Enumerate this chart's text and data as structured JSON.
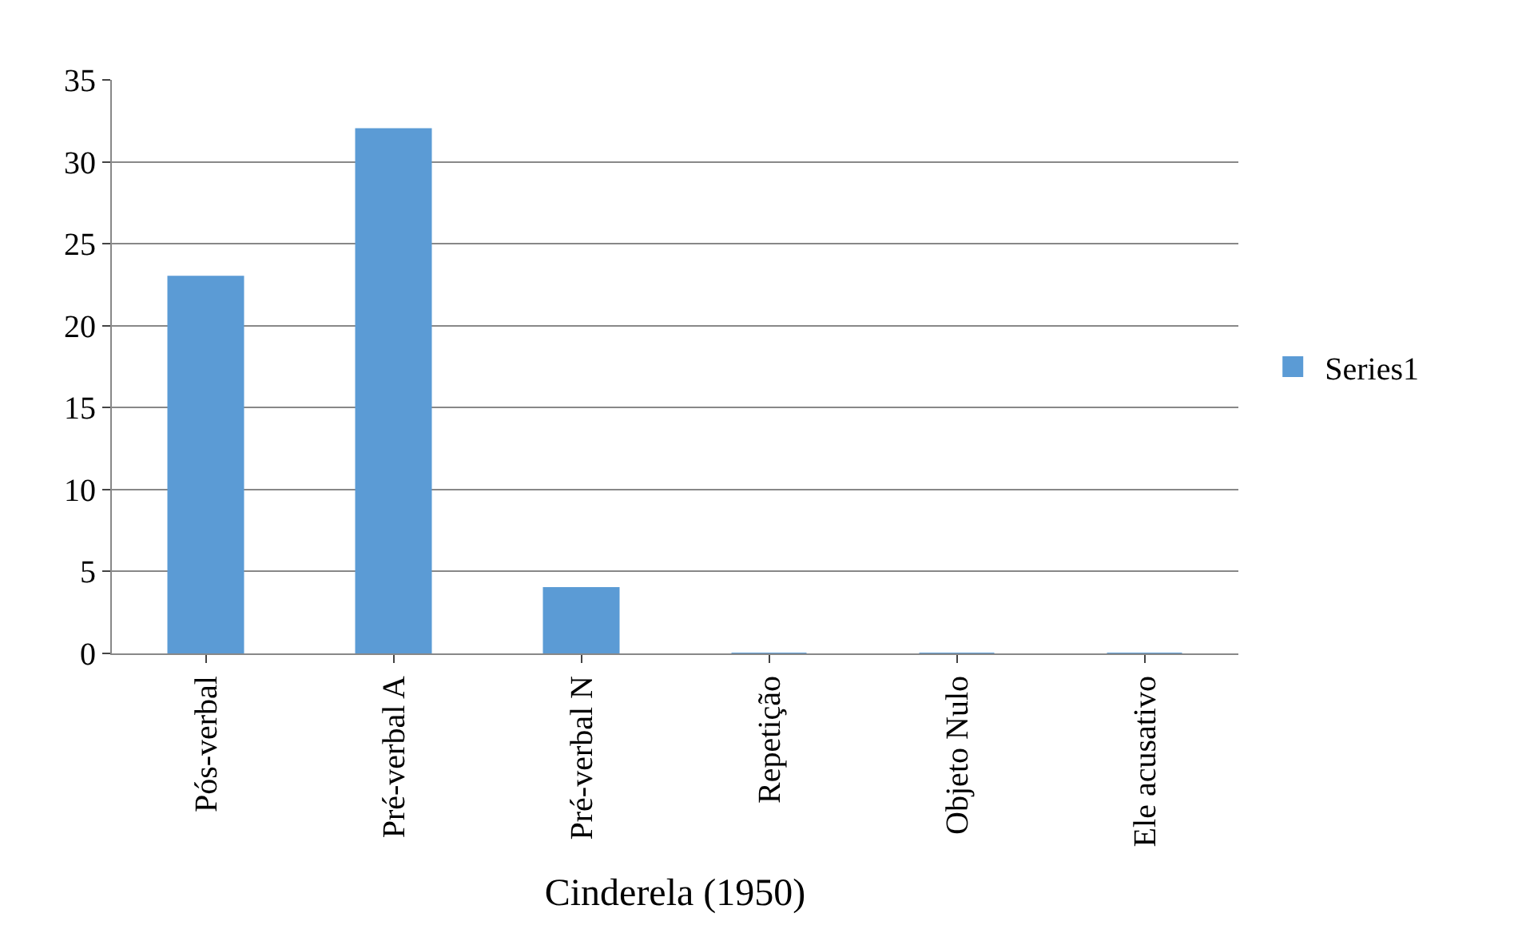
{
  "chart_data": {
    "type": "bar",
    "xlabel": "Cinderela (1950)",
    "categories": [
      "Pós-verbal",
      "Pré-verbal A",
      "Pré-verbal N",
      "Repetição",
      "Objeto Nulo",
      "Ele acusativo"
    ],
    "series": [
      {
        "name": "Series1",
        "color": "#5b9bd5",
        "values": [
          23,
          32,
          4,
          0,
          0,
          0
        ]
      }
    ],
    "ylim": [
      0,
      35
    ],
    "yticks": [
      0,
      5,
      10,
      15,
      20,
      25,
      30,
      35
    ],
    "grid": "y",
    "legend": "right"
  }
}
